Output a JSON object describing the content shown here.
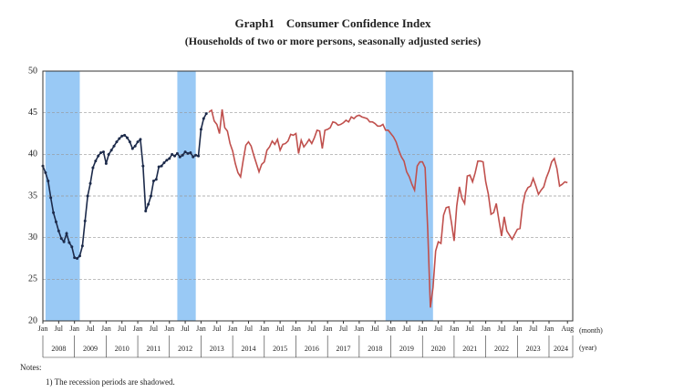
{
  "chart_data": {
    "type": "line",
    "title": "Graph1　Consumer Confidence Index",
    "subtitle": "(Households of two or more persons, seasonally adjusted series)",
    "xlim": [
      "2008-01",
      "2024-10"
    ],
    "ylim": [
      20,
      50
    ],
    "yticks": [
      20,
      25,
      30,
      35,
      40,
      45,
      50
    ],
    "grid": true,
    "month_axis_label": "(month)",
    "year_axis_label": "(year)",
    "xticks": [
      {
        "value": "2008-01",
        "label": "Jan"
      },
      {
        "value": "2008-07",
        "label": "Jul"
      },
      {
        "value": "2009-01",
        "label": "Jan"
      },
      {
        "value": "2009-07",
        "label": "Jul"
      },
      {
        "value": "2010-01",
        "label": "Jan"
      },
      {
        "value": "2010-07",
        "label": "Jul"
      },
      {
        "value": "2011-01",
        "label": "Jan"
      },
      {
        "value": "2011-07",
        "label": "Jul"
      },
      {
        "value": "2012-01",
        "label": "Jan"
      },
      {
        "value": "2012-07",
        "label": "Jul"
      },
      {
        "value": "2013-01",
        "label": "Jan"
      },
      {
        "value": "2013-07",
        "label": "Jul"
      },
      {
        "value": "2014-01",
        "label": "Jan"
      },
      {
        "value": "2014-07",
        "label": "Jul"
      },
      {
        "value": "2015-01",
        "label": "Jan"
      },
      {
        "value": "2015-07",
        "label": "Jul"
      },
      {
        "value": "2016-01",
        "label": "Jan"
      },
      {
        "value": "2016-07",
        "label": "Jul"
      },
      {
        "value": "2017-01",
        "label": "Jan"
      },
      {
        "value": "2017-07",
        "label": "Jul"
      },
      {
        "value": "2018-01",
        "label": "Jan"
      },
      {
        "value": "2018-07",
        "label": "Jul"
      },
      {
        "value": "2019-01",
        "label": "Jan"
      },
      {
        "value": "2019-07",
        "label": "Jul"
      },
      {
        "value": "2020-01",
        "label": "Jan"
      },
      {
        "value": "2020-07",
        "label": "Jul"
      },
      {
        "value": "2021-01",
        "label": "Jan"
      },
      {
        "value": "2021-07",
        "label": "Jul"
      },
      {
        "value": "2022-01",
        "label": "Jan"
      },
      {
        "value": "2022-07",
        "label": "Jul"
      },
      {
        "value": "2023-01",
        "label": "Jan"
      },
      {
        "value": "2023-07",
        "label": "Jul"
      },
      {
        "value": "2024-01",
        "label": "Jan"
      },
      {
        "value": "2024-08",
        "label": "Aug"
      }
    ],
    "year_labels": [
      "2008",
      "2009",
      "2010",
      "2011",
      "2012",
      "2013",
      "2014",
      "2015",
      "2016",
      "2017",
      "2018",
      "2019",
      "2020",
      "2021",
      "2022",
      "2023",
      "2024"
    ],
    "shaded_periods": [
      [
        "2008-02",
        "2009-03"
      ],
      [
        "2012-04",
        "2012-11"
      ],
      [
        "2018-11",
        "2020-05"
      ]
    ],
    "shade_color": "#99c9f5",
    "series": [
      {
        "color": "#1c2a4a",
        "markers": true,
        "x": [
          "2008-01",
          "2008-02",
          "2008-03",
          "2008-04",
          "2008-05",
          "2008-06",
          "2008-07",
          "2008-08",
          "2008-09",
          "2008-10",
          "2008-11",
          "2008-12",
          "2009-01",
          "2009-02",
          "2009-03",
          "2009-04",
          "2009-05",
          "2009-06",
          "2009-07",
          "2009-08",
          "2009-09",
          "2009-10",
          "2009-11",
          "2009-12",
          "2010-01",
          "2010-02",
          "2010-03",
          "2010-04",
          "2010-05",
          "2010-06",
          "2010-07",
          "2010-08",
          "2010-09",
          "2010-10",
          "2010-11",
          "2010-12",
          "2011-01",
          "2011-02",
          "2011-03",
          "2011-04",
          "2011-05",
          "2011-06",
          "2011-07",
          "2011-08",
          "2011-09",
          "2011-10",
          "2011-11",
          "2011-12",
          "2012-01",
          "2012-02",
          "2012-03",
          "2012-04",
          "2012-05",
          "2012-06",
          "2012-07",
          "2012-08",
          "2012-09",
          "2012-10",
          "2012-11",
          "2012-12",
          "2013-01",
          "2013-02",
          "2013-03"
        ],
        "values": [
          38.6,
          37.8,
          36.8,
          34.8,
          33.0,
          31.9,
          30.8,
          29.9,
          29.5,
          30.5,
          29.4,
          28.9,
          27.6,
          27.5,
          27.8,
          29.0,
          32.0,
          35.0,
          36.5,
          38.4,
          39.2,
          39.8,
          40.2,
          40.3,
          38.9,
          40.0,
          40.5,
          41.0,
          41.5,
          41.9,
          42.2,
          42.3,
          42.0,
          41.5,
          40.7,
          41.0,
          41.5,
          41.8,
          38.6,
          33.2,
          34.0,
          35.0,
          36.8,
          37.0,
          38.5,
          38.6,
          39.0,
          39.3,
          39.5,
          40.0,
          39.8,
          40.1,
          39.7,
          39.9,
          40.3,
          40.1,
          40.2,
          39.7,
          39.9,
          39.8,
          43.0,
          44.3,
          44.9
        ]
      },
      {
        "color": "#c0504d",
        "markers": false,
        "x": [
          "2013-04",
          "2013-05",
          "2013-06",
          "2013-07",
          "2013-08",
          "2013-09",
          "2013-10",
          "2013-11",
          "2013-12",
          "2014-01",
          "2014-02",
          "2014-03",
          "2014-04",
          "2014-05",
          "2014-06",
          "2014-07",
          "2014-08",
          "2014-09",
          "2014-10",
          "2014-11",
          "2014-12",
          "2015-01",
          "2015-02",
          "2015-03",
          "2015-04",
          "2015-05",
          "2015-06",
          "2015-07",
          "2015-08",
          "2015-09",
          "2015-10",
          "2015-11",
          "2015-12",
          "2016-01",
          "2016-02",
          "2016-03",
          "2016-04",
          "2016-05",
          "2016-06",
          "2016-07",
          "2016-08",
          "2016-09",
          "2016-10",
          "2016-11",
          "2016-12",
          "2017-01",
          "2017-02",
          "2017-03",
          "2017-04",
          "2017-05",
          "2017-06",
          "2017-07",
          "2017-08",
          "2017-09",
          "2017-10",
          "2017-11",
          "2017-12",
          "2018-01",
          "2018-02",
          "2018-03",
          "2018-04",
          "2018-05",
          "2018-06",
          "2018-07",
          "2018-08",
          "2018-09",
          "2018-10",
          "2018-11",
          "2018-12",
          "2019-01",
          "2019-02",
          "2019-03",
          "2019-04",
          "2019-05",
          "2019-06",
          "2019-07",
          "2019-08",
          "2019-09",
          "2019-10",
          "2019-11",
          "2019-12",
          "2020-01",
          "2020-02",
          "2020-03",
          "2020-04",
          "2020-05",
          "2020-06",
          "2020-07",
          "2020-08",
          "2020-09",
          "2020-10",
          "2020-11",
          "2020-12",
          "2021-01",
          "2021-02",
          "2021-03",
          "2021-04",
          "2021-05",
          "2021-06",
          "2021-07",
          "2021-08",
          "2021-09",
          "2021-10",
          "2021-11",
          "2021-12",
          "2022-01",
          "2022-02",
          "2022-03",
          "2022-04",
          "2022-05",
          "2022-06",
          "2022-07",
          "2022-08",
          "2022-09",
          "2022-10",
          "2022-11",
          "2022-12",
          "2023-01",
          "2023-02",
          "2023-03",
          "2023-04",
          "2023-05",
          "2023-06",
          "2023-07",
          "2023-08",
          "2023-09",
          "2023-10",
          "2023-11",
          "2023-12",
          "2024-01",
          "2024-02",
          "2024-03",
          "2024-04",
          "2024-05",
          "2024-06",
          "2024-07",
          "2024-08"
        ],
        "values": [
          45.1,
          45.3,
          44.0,
          43.6,
          42.5,
          45.4,
          43.2,
          42.8,
          41.3,
          40.4,
          38.9,
          37.8,
          37.3,
          39.3,
          41.1,
          41.5,
          41.0,
          39.9,
          38.9,
          37.9,
          38.8,
          39.1,
          40.5,
          40.9,
          41.6,
          41.2,
          41.8,
          40.5,
          41.2,
          41.3,
          41.6,
          42.4,
          42.3,
          42.5,
          40.1,
          41.7,
          40.9,
          41.3,
          41.8,
          41.3,
          42.0,
          42.9,
          42.8,
          40.7,
          42.9,
          43.0,
          43.2,
          43.9,
          43.8,
          43.5,
          43.6,
          43.8,
          44.1,
          43.9,
          44.5,
          44.3,
          44.6,
          44.7,
          44.5,
          44.4,
          44.3,
          43.9,
          43.9,
          43.7,
          43.4,
          43.4,
          43.6,
          42.9,
          42.9,
          42.5,
          42.1,
          41.5,
          40.5,
          39.7,
          39.2,
          37.9,
          37.3,
          36.4,
          35.7,
          38.6,
          39.1,
          39.1,
          38.4,
          30.9,
          21.6,
          24.0,
          28.4,
          29.5,
          29.3,
          32.7,
          33.6,
          33.7,
          31.8,
          29.6,
          33.8,
          36.1,
          34.7,
          34.1,
          37.4,
          37.5,
          36.7,
          37.8,
          39.2,
          39.2,
          39.1,
          36.7,
          35.2,
          32.8,
          33.0,
          34.1,
          32.1,
          30.2,
          32.5,
          30.8,
          30.3,
          29.8,
          30.4,
          31.0,
          31.1,
          33.9,
          35.4,
          36.0,
          36.2,
          37.1,
          36.2,
          35.2,
          35.7,
          36.1,
          37.2,
          38.0,
          39.1,
          39.5,
          38.3,
          36.2,
          36.4,
          36.7,
          36.6
        ]
      }
    ],
    "notes_title": "Notes:",
    "notes": [
      "1) The recession periods are shadowed."
    ]
  }
}
